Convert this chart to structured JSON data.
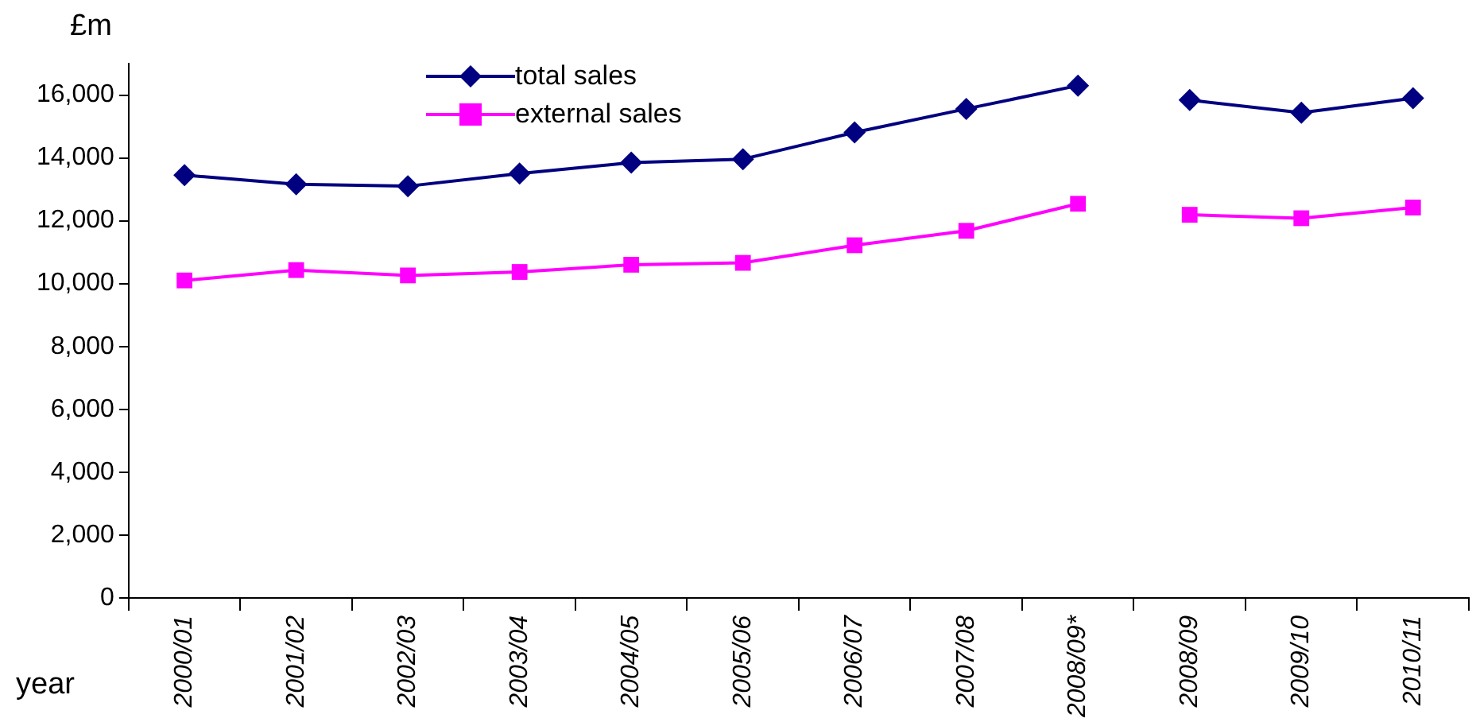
{
  "chart_data": {
    "type": "line",
    "ylabel": "£m",
    "xlabel": "year",
    "categories": [
      "2000/01",
      "2001/02",
      "2002/03",
      "2003/04",
      "2004/05",
      "2005/06",
      "2006/07",
      "2007/08",
      "2008/09*",
      "2008/09",
      "2009/10",
      "2010/11"
    ],
    "series": [
      {
        "name": "total sales",
        "color": "#000080",
        "marker": "diamond",
        "values": [
          13450,
          13160,
          13100,
          13500,
          13850,
          13960,
          14810,
          15560,
          16300,
          null,
          null,
          null
        ]
      },
      {
        "name": "external sales",
        "color": "#ff00ff",
        "marker": "square",
        "values": [
          10100,
          10430,
          10260,
          10370,
          10600,
          10660,
          11220,
          11680,
          12540,
          null,
          null,
          null
        ]
      },
      {
        "color": "#000080",
        "marker": "diamond",
        "values": [
          null,
          null,
          null,
          null,
          null,
          null,
          null,
          null,
          null,
          15840,
          15440,
          15900
        ]
      },
      {
        "color": "#ff00ff",
        "marker": "square",
        "values": [
          null,
          null,
          null,
          null,
          null,
          null,
          null,
          null,
          null,
          12190,
          12080,
          12420
        ]
      }
    ],
    "ylim": [
      0,
      17000
    ],
    "yticks": [
      0,
      {
        "value": 2000,
        "label": "2,000"
      },
      {
        "value": 4000,
        "label": "4,000"
      },
      {
        "value": 6000,
        "label": "6,000"
      },
      {
        "value": 8000,
        "label": "8,000"
      },
      {
        "value": 10000,
        "label": "10,000"
      },
      {
        "value": 12000,
        "label": "12,000"
      },
      {
        "value": 14000,
        "label": "14,000"
      },
      {
        "value": 16000,
        "label": "16,000"
      }
    ],
    "grid": false,
    "legend": "top left"
  }
}
